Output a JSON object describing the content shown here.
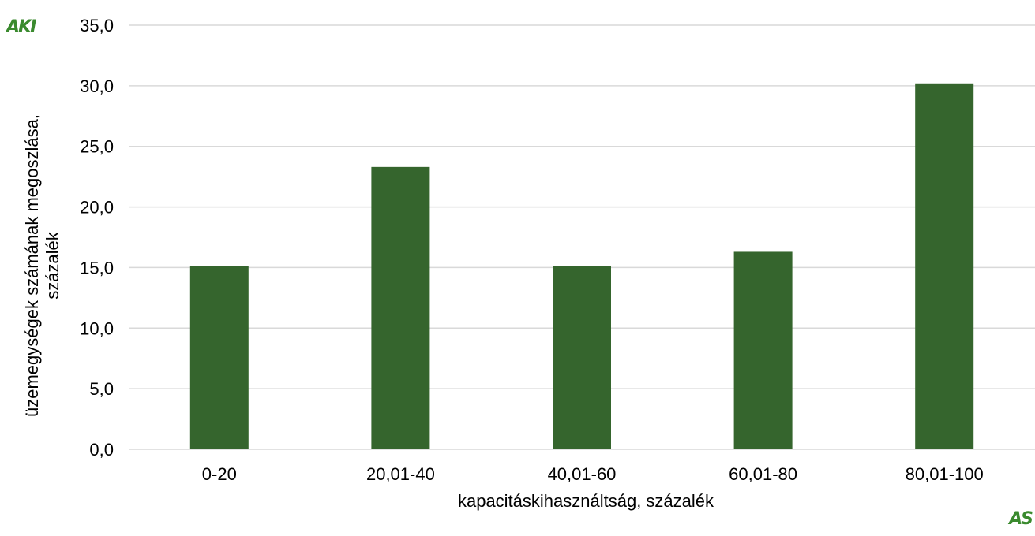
{
  "logos": {
    "top_left": "AKI",
    "bottom_right": "AS"
  },
  "colors": {
    "bar": "#35652d",
    "grid": "#d9d9d9",
    "text": "#000000"
  },
  "chart_data": {
    "type": "bar",
    "categories": [
      "0-20",
      "20,01-40",
      "40,01-60",
      "60,01-80",
      "80,01-100"
    ],
    "values": [
      15.1,
      23.3,
      15.1,
      16.3,
      30.2
    ],
    "xlabel": "kapacitáskihasználtság, százalék",
    "ylabel_lines": [
      "üzemegységek számának megoszlása,",
      "százalék"
    ],
    "ylim": [
      0,
      35
    ],
    "yticks": [
      "0,0",
      "5,0",
      "10,0",
      "15,0",
      "20,0",
      "25,0",
      "30,0",
      "35,0"
    ],
    "ytick_values": [
      0,
      5,
      10,
      15,
      20,
      25,
      30,
      35
    ],
    "grid": true,
    "legend": "none"
  }
}
